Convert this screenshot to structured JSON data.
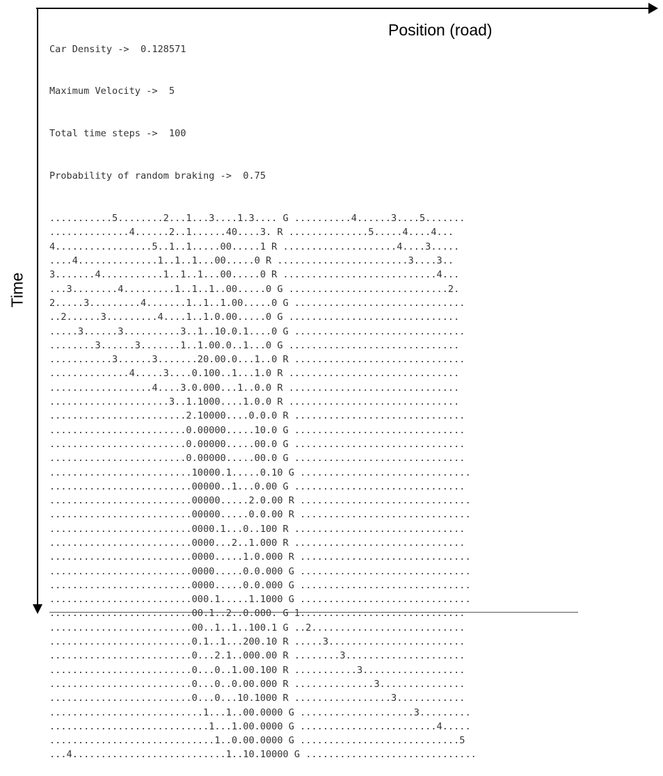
{
  "axes": {
    "x_label": "Position (road)",
    "y_label": "Time"
  },
  "header": [
    "Car Density ->  0.128571",
    "Maximum Velocity ->  5",
    "Total time steps ->  100",
    "Probability of random braking ->  0.75"
  ],
  "rows": [
    "...........5........2...1...3....1.3.... G ..........4......3....5.......",
    "..............4......2..1......40....3. R ..............5.....4....4...",
    "4.................5..1..1.....00.....1 R ....................4....3.....",
    "....4..............1..1..1...00.....0 R .......................3....3..",
    "3.......4...........1..1..1...00.....0 R ...........................4...",
    "...3........4.........1..1..1..00.....0 G ............................2.",
    "2.....3.........4.......1..1..1.00.....0 G ..............................",
    "..2......3.........4....1..1.0.00.....0 G ..............................",
    ".....3......3..........3..1..10.0.1....0 G ..............................",
    "........3......3.......1..1.00.0..1...0 G ..............................",
    "...........3......3.......20.00.0...1..0 R ..............................",
    "..............4.....3....0.100..1...1.0 R ..............................",
    "..................4....3.0.000...1..0.0 R ..............................",
    ".....................3..1.1000....1.0.0 R ..............................",
    "........................2.10000....0.0.0 R ..............................",
    "........................0.00000.....10.0 G ..............................",
    "........................0.00000.....00.0 G ..............................",
    "........................0.00000.....00.0 G ..............................",
    ".........................10000.1.....0.10 G ..............................",
    ".........................00000..1...0.00 G ..............................",
    ".........................00000.....2.0.00 R ..............................",
    ".........................00000.....0.0.00 R ..............................",
    ".........................0000.1...0..100 R ..............................",
    ".........................0000...2..1.000 R ..............................",
    ".........................0000.....1.0.000 R ..............................",
    ".........................0000.....0.0.000 G ..............................",
    ".........................0000.....0.0.000 G ..............................",
    ".........................000.1.....1.1000 G ..............................",
    ".........................00.1..2..0.000. G 1.............................",
    ".........................00..1..1..100.1 G ..2...........................",
    ".........................0.1..1...200.10 R .....3........................",
    ".........................0...2.1..000.00 R ........3.....................",
    ".........................0...0..1.00.100 R ...........3..................",
    ".........................0...0..0.00.000 R ..............3...............",
    ".........................0...0...10.1000 R .................3............",
    "...........................1...1..00.0000 G ....................3.........",
    "............................1...1.00.0000 G ........................4.....",
    ".............................1..0.00.0000 G ............................5",
    "...4...........................1..10.10000 G .............................."
  ]
}
